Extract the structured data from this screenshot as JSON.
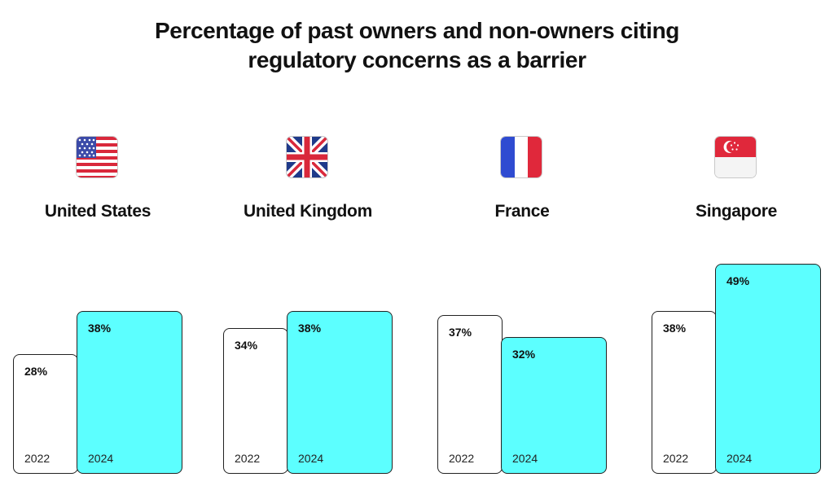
{
  "title_lines": [
    "Percentage of past owners and non-owners citing",
    "regulatory concerns as a barrier"
  ],
  "colors": {
    "year_2022": "#ffffff",
    "year_2024": "#5cffff",
    "border": "#222222"
  },
  "chart_data": {
    "type": "bar",
    "title": "Percentage of past owners and non-owners citing regulatory concerns as a barrier",
    "categories": [
      "United States",
      "United Kingdom",
      "France",
      "Singapore"
    ],
    "series": [
      {
        "name": "2022",
        "values": [
          28,
          34,
          37,
          38
        ],
        "labels": [
          "28%",
          "34%",
          "37%",
          "38%"
        ]
      },
      {
        "name": "2024",
        "values": [
          38,
          38,
          32,
          49
        ],
        "labels": [
          "38%",
          "38%",
          "32%",
          "49%"
        ]
      }
    ],
    "unit": "%",
    "ylim": [
      0,
      49
    ],
    "grid": false,
    "legend": "none"
  },
  "groups": [
    {
      "country": "United States",
      "flag_icon": "us-flag-icon"
    },
    {
      "country": "United Kingdom",
      "flag_icon": "uk-flag-icon"
    },
    {
      "country": "France",
      "flag_icon": "france-flag-icon"
    },
    {
      "country": "Singapore",
      "flag_icon": "singapore-flag-icon"
    }
  ]
}
